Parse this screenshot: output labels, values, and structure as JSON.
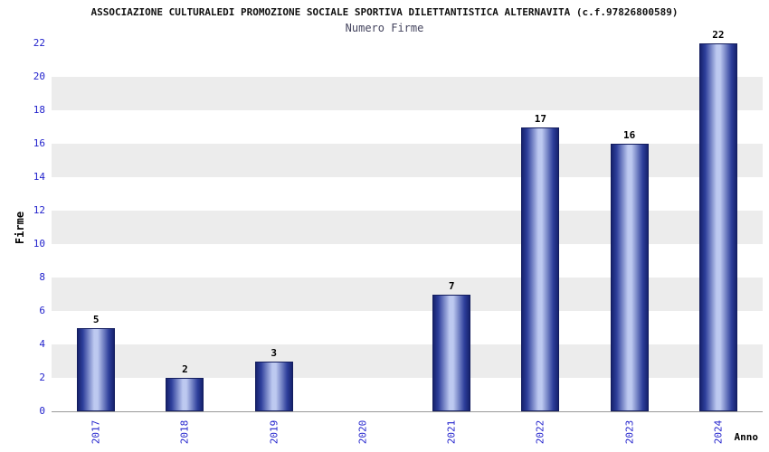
{
  "chart_data": {
    "type": "bar",
    "title": "ASSOCIAZIONE CULTURALEDI PROMOZIONE SOCIALE SPORTIVA DILETTANTISTICA ALTERNAVITA (c.f.97826800589)",
    "subtitle": "Numero Firme",
    "categories": [
      "2017",
      "2018",
      "2019",
      "2020",
      "2021",
      "2022",
      "2023",
      "2024"
    ],
    "values": [
      5,
      2,
      3,
      0,
      7,
      17,
      16,
      22
    ],
    "xlabel": "Anno",
    "ylabel": "Firme",
    "ylim": [
      0,
      22
    ],
    "ytick_step": 2,
    "ytick_labels": [
      "0",
      "2",
      "4",
      "6",
      "8",
      "10",
      "12",
      "14",
      "16",
      "18",
      "20",
      "22"
    ],
    "grid": "alternating-horizontal-bands",
    "legend": "none",
    "colors": {
      "bar_edge": "#16226e",
      "bar_mid": "#2e3f9b",
      "bar_highlight": "#bdc9f0",
      "bar_border": "#131d5e",
      "tick_label": "#2222cc",
      "band_gray": "#ececec",
      "title": "#111111",
      "subtitle": "#44445e",
      "value_label": "#000000",
      "axis_line": "#999999"
    }
  }
}
